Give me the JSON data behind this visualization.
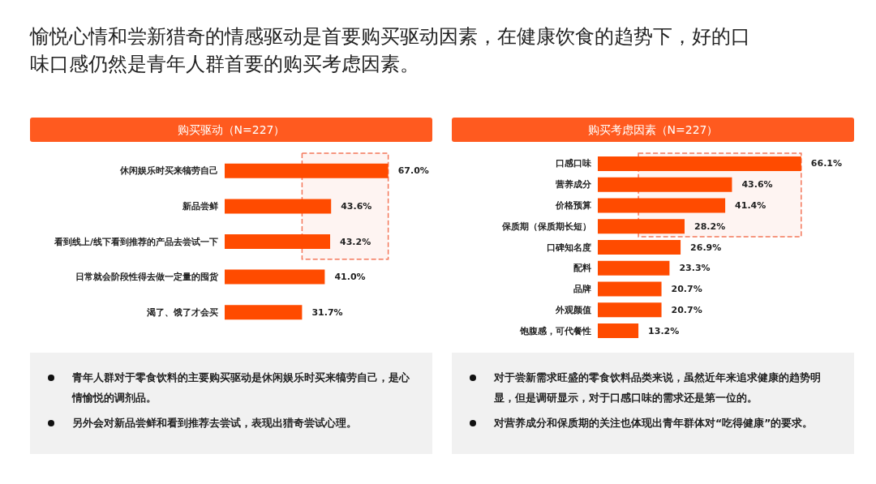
{
  "chart_data": [
    {
      "type": "other",
      "title": "愉悦心情和尝新猎奇的情感驱动是首要购买驱动因素，在健康饮食的趋势下，好的口味口感仍然是青年人群首要的购买考虑因素。"
    },
    {
      "type": "bar",
      "orientation": "horizontal",
      "title": "购买驱动（N=227）",
      "categories": [
        "休闲娱乐时买来犒劳自己",
        "新品尝鲜",
        "看到线上/线下看到推荐的产品去尝试一下",
        "日常就会阶段性得去做一定量的囤货",
        "渴了、饿了才会买"
      ],
      "values": [
        67.0,
        43.6,
        43.2,
        41.0,
        31.7
      ],
      "value_labels": [
        "67.0%",
        "43.6%",
        "43.2%",
        "41.0%",
        "31.7%"
      ],
      "color": "#ff4b00",
      "bands": [
        {
          "axis": "y",
          "from": "休闲娱乐时买来犒劳自己",
          "to": "看到线上/线下看到推荐的产品去尝试一下",
          "color": "#f4775a"
        }
      ],
      "annotations": [
        "青年人群对于零食饮料的主要购买驱动是休闲娱乐时买来犒劳自己，是心情愉悦的调剂品。",
        "另外会对新品尝鲜和看到推荐去尝试，表现出猎奇尝试心理。"
      ]
    },
    {
      "type": "bar",
      "orientation": "horizontal",
      "title": "购买考虑因素（N=227）",
      "categories": [
        "口感口味",
        "营养成分",
        "价格预算",
        "保质期（保质期长短）",
        "口碑知名度",
        "配料",
        "品牌",
        "外观颜值",
        "饱腹感，可代餐性"
      ],
      "values": [
        66.1,
        43.6,
        41.4,
        28.2,
        26.9,
        23.3,
        20.7,
        20.7,
        13.2
      ],
      "value_labels": [
        "66.1%",
        "43.6%",
        "41.4%",
        "28.2%",
        "26.9%",
        "23.3%",
        "20.7%",
        "20.7%",
        "13.2%"
      ],
      "color": "#ff4b00",
      "bands": [
        {
          "axis": "y",
          "from": "口感口味",
          "to": "保质期（保质期长短）",
          "color": "#f4775a"
        }
      ],
      "annotations": [
        "对于尝新需求旺盛的零食饮料品类来说，虽然近年来追求健康的趋势明显，但是调研显示，对于口感口味的需求还是第一位的。",
        "对营养成分和保质期的关注也体现出青年群体对“吃得健康”的要求。"
      ]
    }
  ]
}
